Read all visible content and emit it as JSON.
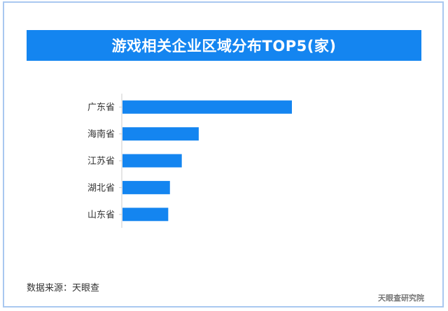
{
  "title": "游戏相关企业区域分布TOP5(家)",
  "source_note": "数据来源：天眼查",
  "watermark": "天眼查研究院",
  "colors": {
    "title_background": "#1485f0",
    "bar": "#1485f0",
    "axis": "#cccccc",
    "frame_border": "#a9c8f0"
  },
  "chart_data": {
    "type": "bar",
    "orientation": "horizontal",
    "title": "游戏相关企业区域分布TOP5(家)",
    "categories": [
      "广东省",
      "海南省",
      "江苏省",
      "湖北省",
      "山东省"
    ],
    "values": [
      100,
      45,
      35,
      28,
      27
    ],
    "value_scale": "relative (no axis ticks or data labels printed; values estimated from bar lengths, 广东省 = 100)",
    "xlabel": "",
    "ylabel": "",
    "xlim": [
      0,
      100
    ],
    "grid": false,
    "legend": "none",
    "data_labels": false
  }
}
